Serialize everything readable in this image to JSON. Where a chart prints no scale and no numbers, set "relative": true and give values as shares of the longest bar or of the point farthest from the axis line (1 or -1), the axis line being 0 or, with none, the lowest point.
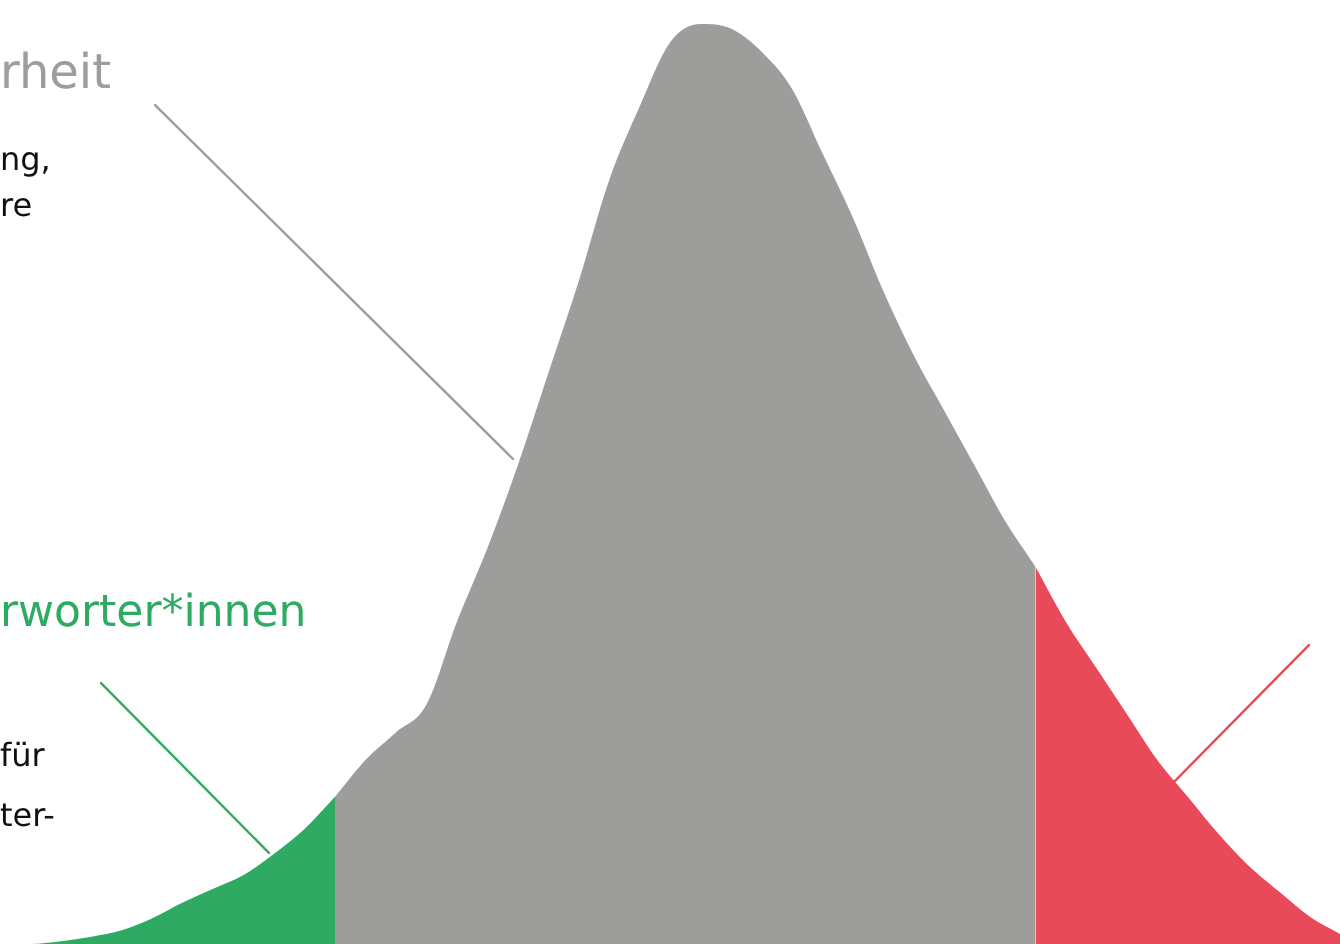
{
  "chart_data": {
    "type": "area",
    "relative": true,
    "categories": [
      null,
      null,
      null,
      null,
      null,
      null,
      null,
      null,
      null,
      null,
      null,
      null,
      null,
      null,
      null,
      null,
      null,
      null,
      null,
      null,
      null,
      null,
      null,
      null,
      null,
      null,
      null,
      null,
      null,
      null,
      null,
      null,
      null,
      null,
      null,
      null,
      null,
      null,
      null,
      null,
      null,
      null,
      null,
      null,
      null
    ],
    "series": [
      {
        "color": "#2eaa62",
        "values": [
          0,
          0,
          0.003,
          0.008,
          0.015,
          0.028,
          0.045,
          0.06,
          0.075,
          0.098,
          0.125,
          0.16,
          null,
          null,
          null,
          null,
          null,
          null,
          null,
          null,
          null,
          null,
          null,
          null,
          null,
          null,
          null,
          null,
          null,
          null,
          null,
          null,
          null,
          null,
          null,
          null,
          null,
          null,
          null,
          null,
          null,
          null,
          null,
          null,
          null
        ]
      },
      {
        "color": "#9d9d9b",
        "values": [
          null,
          null,
          null,
          null,
          null,
          null,
          null,
          null,
          null,
          null,
          null,
          0.16,
          0.2,
          0.23,
          0.26,
          0.35,
          0.43,
          0.52,
          0.62,
          0.72,
          0.83,
          0.91,
          0.98,
          1,
          0.995,
          0.97,
          0.93,
          0.86,
          0.79,
          0.71,
          0.64,
          0.58,
          0.52,
          0.46,
          0.41,
          null,
          null,
          null,
          null,
          null,
          null,
          null,
          null,
          null,
          null
        ]
      },
      {
        "color": "#e84a5a",
        "values": [
          null,
          null,
          null,
          null,
          null,
          null,
          null,
          null,
          null,
          null,
          null,
          null,
          null,
          null,
          null,
          null,
          null,
          null,
          null,
          null,
          null,
          null,
          null,
          null,
          null,
          null,
          null,
          null,
          null,
          null,
          null,
          null,
          null,
          null,
          0.41,
          0.35,
          0.3,
          0.25,
          0.2,
          0.16,
          0.12,
          0.085,
          0.057,
          0.03,
          0.011
        ]
      }
    ],
    "annotations": [
      "rheit",
      "ng,",
      "re",
      "rworter*innen",
      "für",
      "ter-"
    ]
  }
}
